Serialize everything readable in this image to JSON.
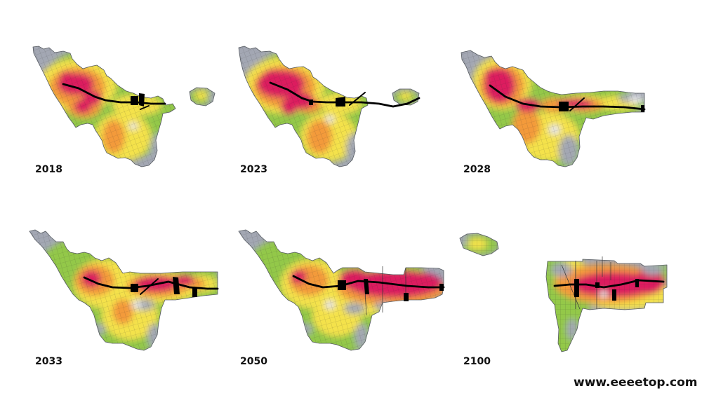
{
  "panels": [
    {
      "year": "2018"
    },
    {
      "year": "2023"
    },
    {
      "year": "2028"
    },
    {
      "year": "2033"
    },
    {
      "year": "2050"
    },
    {
      "year": "2100"
    }
  ],
  "watermark": "www.eeeetop.com",
  "colors": {
    "peak": "#dc1f5e",
    "high": "#f39a3b",
    "mid": "#f4e24c",
    "low": "#93c84a",
    "base": "#a3a7b3",
    "pale": "#e4e5ea",
    "transit": "#000000",
    "outline": "#555a60",
    "text": "#111111"
  }
}
